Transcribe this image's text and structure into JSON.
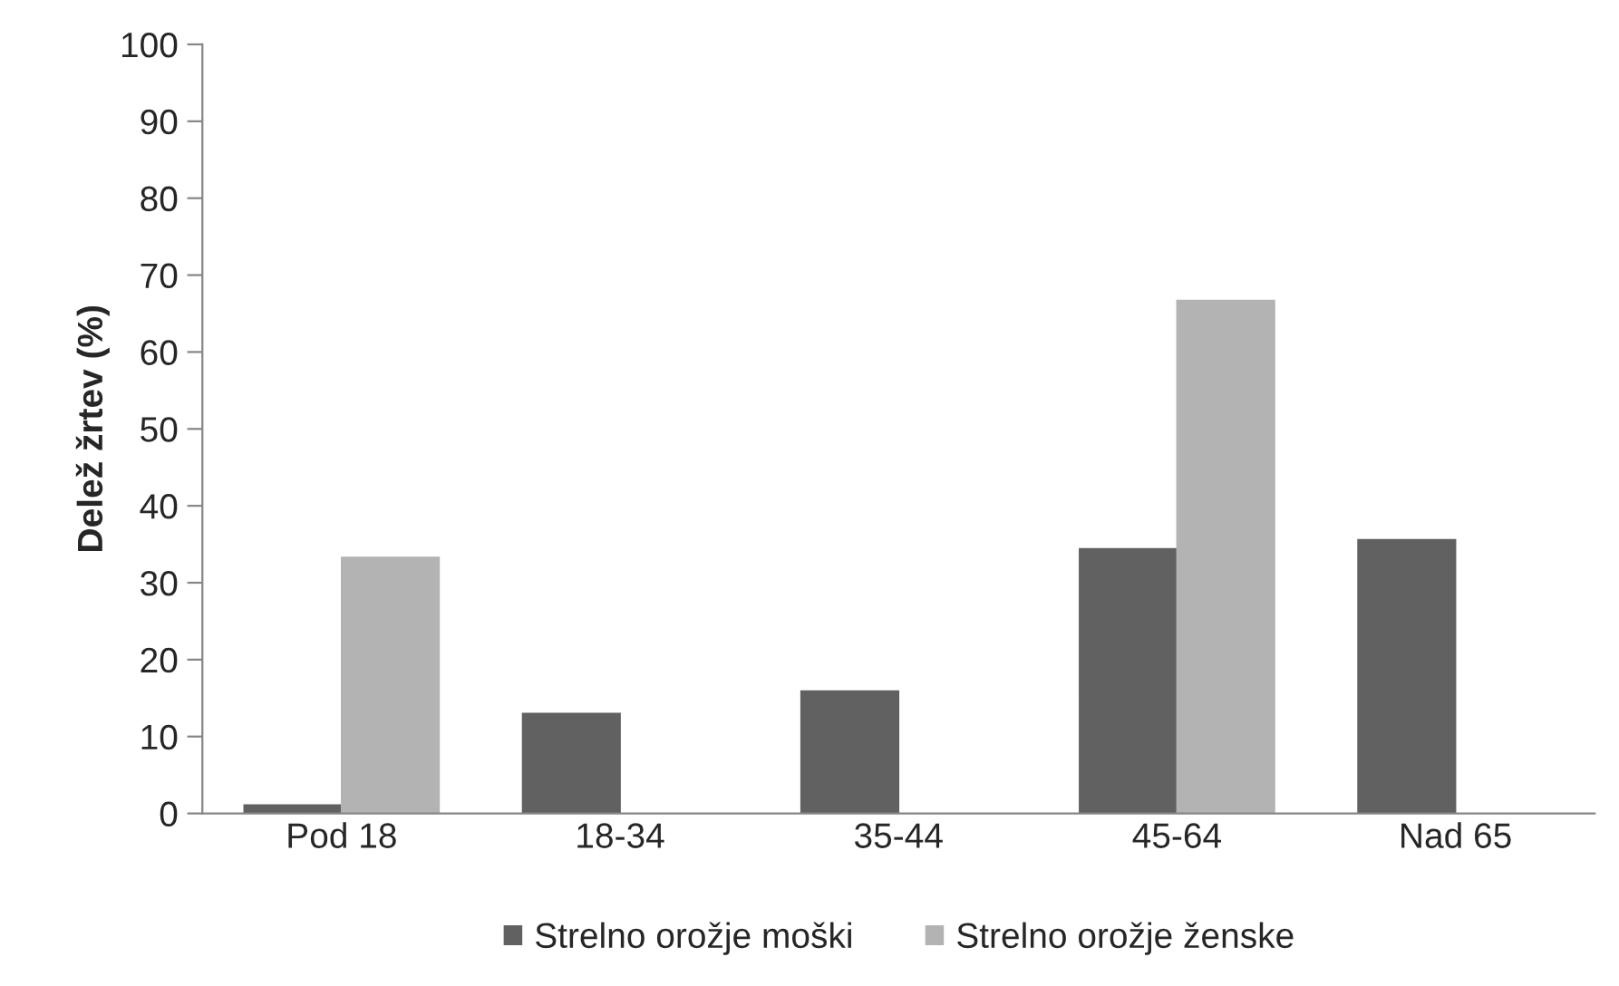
{
  "chart_data": {
    "type": "bar",
    "ylabel": "Delež žrtev (%)",
    "categories": [
      "Pod 18",
      "18-34",
      "35-44",
      "45-64",
      "Nad 65"
    ],
    "series": [
      {
        "name": "Strelno orožje moški",
        "color": "#616161",
        "values": [
          1.1,
          13,
          15.9,
          34.4,
          35.6
        ]
      },
      {
        "name": "Strelno orožje ženske",
        "color": "#b3b3b3",
        "values": [
          33.3,
          null,
          null,
          66.7,
          null
        ]
      }
    ],
    "ylim": [
      0,
      100
    ],
    "yticks": [
      0,
      10,
      20,
      30,
      40,
      50,
      60,
      70,
      80,
      90,
      100
    ],
    "grid": false,
    "legend": "bottom"
  }
}
